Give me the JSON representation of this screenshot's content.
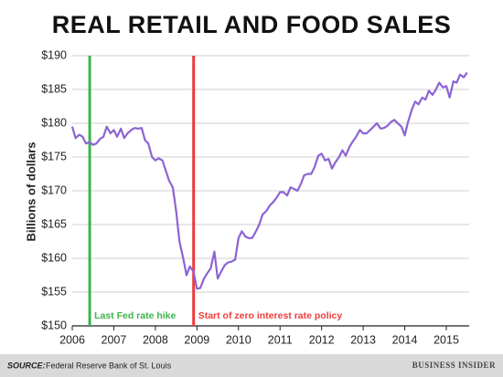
{
  "chart_data": {
    "type": "line",
    "title": "REAL RETAIL AND FOOD SALES",
    "ylabel": "Billions of dollars",
    "x": [
      2006.0,
      2006.08,
      2006.17,
      2006.25,
      2006.33,
      2006.42,
      2006.5,
      2006.58,
      2006.67,
      2006.75,
      2006.83,
      2006.92,
      2007.0,
      2007.08,
      2007.17,
      2007.25,
      2007.33,
      2007.42,
      2007.5,
      2007.58,
      2007.67,
      2007.75,
      2007.83,
      2007.92,
      2008.0,
      2008.08,
      2008.17,
      2008.25,
      2008.33,
      2008.42,
      2008.5,
      2008.58,
      2008.67,
      2008.75,
      2008.83,
      2008.92,
      2009.0,
      2009.08,
      2009.17,
      2009.25,
      2009.33,
      2009.42,
      2009.5,
      2009.58,
      2009.67,
      2009.75,
      2009.83,
      2009.92,
      2010.0,
      2010.08,
      2010.17,
      2010.25,
      2010.33,
      2010.42,
      2010.5,
      2010.58,
      2010.67,
      2010.75,
      2010.83,
      2010.92,
      2011.0,
      2011.08,
      2011.17,
      2011.25,
      2011.33,
      2011.42,
      2011.5,
      2011.58,
      2011.67,
      2011.75,
      2011.83,
      2011.92,
      2012.0,
      2012.08,
      2012.17,
      2012.25,
      2012.33,
      2012.42,
      2012.5,
      2012.58,
      2012.67,
      2012.75,
      2012.83,
      2012.92,
      2013.0,
      2013.08,
      2013.17,
      2013.25,
      2013.33,
      2013.42,
      2013.5,
      2013.58,
      2013.67,
      2013.75,
      2013.83,
      2013.92,
      2014.0,
      2014.08,
      2014.17,
      2014.25,
      2014.33,
      2014.42,
      2014.5,
      2014.58,
      2014.67,
      2014.75,
      2014.83,
      2014.92,
      2015.0,
      2015.08,
      2015.17,
      2015.25,
      2015.33,
      2015.42,
      2015.5
    ],
    "series": [
      {
        "name": "Real retail and food sales",
        "color": "#8c64d4",
        "values": [
          179.5,
          177.8,
          178.3,
          178,
          177,
          177.2,
          176.8,
          177,
          177.7,
          178,
          179.5,
          178.5,
          179,
          178,
          179.2,
          177.8,
          178.5,
          179,
          179.3,
          179.2,
          179.3,
          177.5,
          177,
          175,
          174.5,
          174.8,
          174.5,
          173,
          171.5,
          170.5,
          167,
          162.5,
          160,
          157.5,
          158.8,
          158,
          155.5,
          155.6,
          157,
          157.8,
          158.5,
          161,
          157,
          158,
          159,
          159.4,
          159.5,
          159.8,
          163,
          164,
          163.2,
          163,
          163,
          164,
          165,
          166.5,
          167,
          167.8,
          168.3,
          169,
          169.8,
          169.8,
          169.3,
          170.5,
          170.3,
          170,
          171,
          172.3,
          172.5,
          172.5,
          173.5,
          175.2,
          175.5,
          174.5,
          174.7,
          173.3,
          174.2,
          175,
          176,
          175.2,
          176.5,
          177.3,
          178,
          179,
          178.5,
          178.5,
          179,
          179.5,
          180,
          179.2,
          179.3,
          179.6,
          180.2,
          180.5,
          180,
          179.5,
          178.2,
          180.2,
          182,
          183.2,
          182.8,
          183.8,
          183.5,
          184.8,
          184.2,
          185,
          186,
          185.3,
          185.5,
          183.8,
          186.2,
          186,
          187.2,
          186.8,
          187.5
        ]
      }
    ],
    "xlim": [
      2006,
      2015.55
    ],
    "xticks": [
      2006,
      2007,
      2008,
      2009,
      2010,
      2011,
      2012,
      2013,
      2014,
      2015
    ],
    "ylim": [
      150,
      190
    ],
    "yticks": [
      {
        "value": 150,
        "label": "$150"
      },
      {
        "value": 155,
        "label": "$155"
      },
      {
        "value": 160,
        "label": "$160"
      },
      {
        "value": 165,
        "label": "$165"
      },
      {
        "value": 170,
        "label": "$170"
      },
      {
        "value": 175,
        "label": "$175"
      },
      {
        "value": 180,
        "label": "$180"
      },
      {
        "value": 185,
        "label": "$185"
      },
      {
        "value": 190,
        "label": "$190"
      }
    ],
    "grid": true,
    "markers": [
      {
        "x": 2006.42,
        "label": "Last Fed rate hike",
        "color": "#3cb44b"
      },
      {
        "x": 2008.92,
        "label": "Start of zero interest rate policy",
        "color": "#ee3b3b"
      }
    ],
    "source_label": "SOURCE:",
    "source": "Federal Reserve Bank of St. Louis",
    "brand": "BUSINESS INSIDER"
  }
}
